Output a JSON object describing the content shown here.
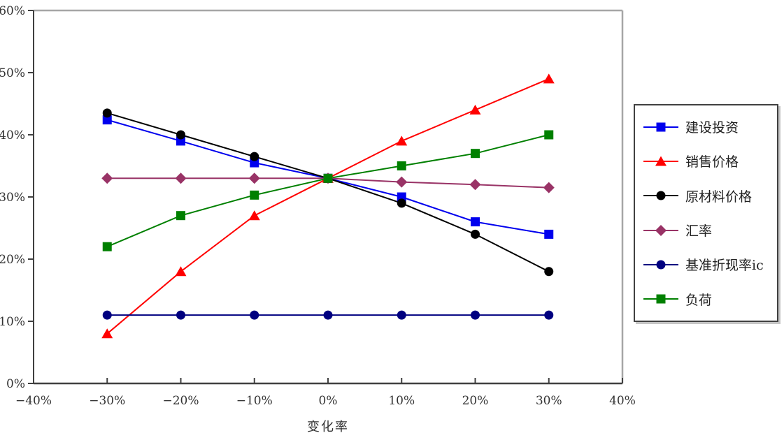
{
  "chart_data": {
    "type": "line",
    "title": "",
    "xlabel": "变化率",
    "ylabel": "",
    "xlim": [
      -40,
      40
    ],
    "ylim": [
      0,
      60
    ],
    "grid": false,
    "legend_position": "right",
    "x_tick_values": [
      -40,
      -30,
      -20,
      -10,
      0,
      10,
      20,
      30,
      40
    ],
    "x_tick_labels": [
      "−40%",
      "−30%",
      "−20%",
      "−10%",
      "0%",
      "10%",
      "20%",
      "30%",
      "40%"
    ],
    "y_tick_values": [
      0,
      10,
      20,
      30,
      40,
      50,
      60
    ],
    "y_tick_labels": [
      "0%",
      "10%",
      "20%",
      "30%",
      "40%",
      "50%",
      "60%"
    ],
    "x": [
      -30,
      -20,
      -10,
      0,
      10,
      20,
      30
    ],
    "series": [
      {
        "name": "建设投资",
        "color": "#0000ee",
        "marker": "square",
        "values": [
          42.4,
          39,
          35.5,
          33,
          30,
          26,
          24
        ]
      },
      {
        "name": "销售价格",
        "color": "#ff0000",
        "marker": "triangle",
        "values": [
          8,
          18,
          27,
          33,
          39,
          44,
          49
        ]
      },
      {
        "name": "原材料价格",
        "color": "#000000",
        "marker": "circle",
        "values": [
          43.5,
          40,
          36.5,
          33,
          29,
          24,
          18
        ]
      },
      {
        "name": "汇率",
        "color": "#993366",
        "marker": "diamond",
        "values": [
          33,
          33,
          33,
          33,
          32.4,
          32,
          31.5
        ]
      },
      {
        "name": "基准折现率ic",
        "color": "#000080",
        "marker": "circle",
        "values": [
          11,
          11,
          11,
          11,
          11,
          11,
          11
        ]
      },
      {
        "name": "负荷",
        "color": "#008000",
        "marker": "square",
        "values": [
          22,
          27,
          30.3,
          33,
          35,
          37,
          40
        ]
      }
    ]
  },
  "style": {
    "axis_color": "#404040",
    "plot_border_color": "#a6a6a6",
    "text_color": "#333333",
    "background": "#ffffff"
  }
}
